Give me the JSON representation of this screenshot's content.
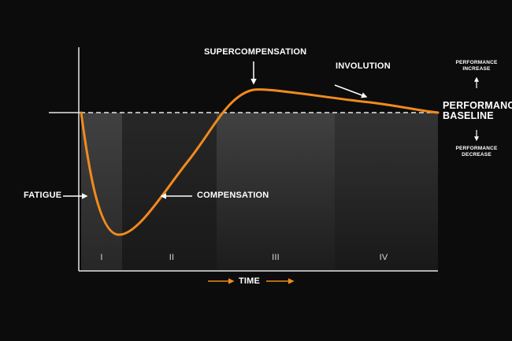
{
  "labels": {
    "supercompensation": "SUPERCOMPENSATION",
    "involution": "INVOLUTION",
    "fatigue": "FATIGUE",
    "compensation": "COMPENSATION",
    "performance_baseline_line1": "PERFORMANCE",
    "performance_baseline_line2": "BASELINE",
    "performance_increase_line1": "PERFORMANCE",
    "performance_increase_line2": "INCREASE",
    "performance_decrease_line1": "PERFORMANCE",
    "performance_decrease_line2": "DECREASE",
    "time": "TIME"
  },
  "phases": [
    "I",
    "II",
    "III",
    "IV"
  ],
  "colors": {
    "background": "#0c0c0c",
    "curve": "#f28a1d",
    "axis": "#e6e6e6",
    "text": "#ffffff"
  }
}
